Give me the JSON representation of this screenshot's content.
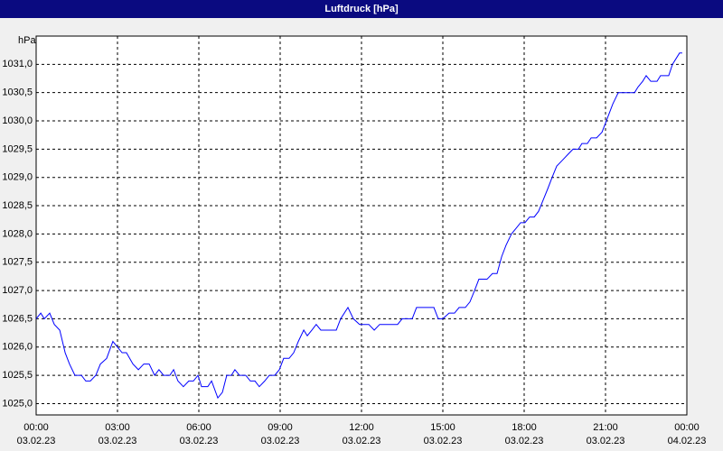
{
  "chart_data": {
    "type": "line",
    "title": "Luftdruck [hPa]",
    "y_unit": "hPa",
    "x": [
      0,
      0.17,
      0.3,
      0.5,
      0.67,
      0.87,
      1.07,
      1.23,
      1.43,
      1.67,
      1.83,
      2,
      2.2,
      2.37,
      2.6,
      2.83,
      3,
      3.17,
      3.33,
      3.57,
      3.77,
      3.97,
      4.17,
      4.37,
      4.53,
      4.7,
      4.93,
      5.07,
      5.23,
      5.43,
      5.63,
      5.8,
      5.97,
      6.1,
      6.33,
      6.47,
      6.7,
      6.87,
      7.03,
      7.2,
      7.33,
      7.5,
      7.73,
      7.9,
      8.07,
      8.23,
      8.43,
      8.6,
      8.8,
      8.97,
      9.13,
      9.33,
      9.5,
      9.67,
      9.87,
      10,
      10.17,
      10.33,
      10.5,
      10.7,
      11.07,
      11.23,
      11.5,
      11.7,
      11.93,
      12.27,
      12.47,
      12.67,
      13.33,
      13.5,
      13.87,
      14.03,
      14.67,
      14.83,
      15,
      15.23,
      15.43,
      15.6,
      15.83,
      16,
      16.17,
      16.33,
      16.63,
      16.83,
      17,
      17.17,
      17.33,
      17.53,
      17.7,
      17.87,
      18.03,
      18.2,
      18.37,
      18.53,
      18.7,
      18.87,
      19.03,
      19.2,
      19.4,
      19.6,
      19.8,
      20,
      20.13,
      20.33,
      20.47,
      20.67,
      20.87,
      21.03,
      21.27,
      21.47,
      21.67,
      22.07,
      22.2,
      22.37,
      22.5,
      22.67,
      22.9,
      23.03,
      23.33,
      23.47,
      23.6,
      23.73,
      23.83
    ],
    "values": [
      1026.5,
      1026.6,
      1026.5,
      1026.6,
      1026.4,
      1026.3,
      1025.9,
      1025.7,
      1025.5,
      1025.5,
      1025.4,
      1025.4,
      1025.5,
      1025.7,
      1025.8,
      1026.1,
      1026.0,
      1025.9,
      1025.9,
      1025.7,
      1025.6,
      1025.7,
      1025.7,
      1025.5,
      1025.6,
      1025.5,
      1025.5,
      1025.6,
      1025.4,
      1025.3,
      1025.4,
      1025.4,
      1025.5,
      1025.3,
      1025.3,
      1025.4,
      1025.1,
      1025.2,
      1025.5,
      1025.5,
      1025.6,
      1025.5,
      1025.5,
      1025.4,
      1025.4,
      1025.3,
      1025.4,
      1025.5,
      1025.5,
      1025.6,
      1025.8,
      1025.8,
      1025.9,
      1026.1,
      1026.3,
      1026.2,
      1026.3,
      1026.4,
      1026.3,
      1026.3,
      1026.3,
      1026.5,
      1026.7,
      1026.5,
      1026.4,
      1026.4,
      1026.3,
      1026.4,
      1026.4,
      1026.5,
      1026.5,
      1026.7,
      1026.7,
      1026.5,
      1026.5,
      1026.6,
      1026.6,
      1026.7,
      1026.7,
      1026.8,
      1027.0,
      1027.2,
      1027.2,
      1027.3,
      1027.3,
      1027.6,
      1027.8,
      1028.0,
      1028.1,
      1028.2,
      1028.2,
      1028.3,
      1028.3,
      1028.4,
      1028.6,
      1028.8,
      1029.0,
      1029.2,
      1029.3,
      1029.4,
      1029.5,
      1029.5,
      1029.6,
      1029.6,
      1029.7,
      1029.7,
      1029.8,
      1030.0,
      1030.3,
      1030.5,
      1030.5,
      1030.5,
      1030.6,
      1030.7,
      1030.8,
      1030.7,
      1030.7,
      1030.8,
      1030.8,
      1031.0,
      1031.1,
      1031.2,
      1031.2
    ],
    "color": "#0000ff",
    "xlim": [
      0,
      24
    ],
    "xticks": [
      {
        "value": 0,
        "label": "00:00",
        "date": "03.02.23"
      },
      {
        "value": 3,
        "label": "03:00",
        "date": "03.02.23"
      },
      {
        "value": 6,
        "label": "06:00",
        "date": "03.02.23"
      },
      {
        "value": 9,
        "label": "09:00",
        "date": "03.02.23"
      },
      {
        "value": 12,
        "label": "12:00",
        "date": "03.02.23"
      },
      {
        "value": 15,
        "label": "15:00",
        "date": "03.02.23"
      },
      {
        "value": 18,
        "label": "18:00",
        "date": "03.02.23"
      },
      {
        "value": 21,
        "label": "21:00",
        "date": "03.02.23"
      },
      {
        "value": 24,
        "label": "00:00",
        "date": "04.02.23"
      }
    ],
    "ylim": [
      1024.8,
      1031.5
    ],
    "yticks": [
      {
        "value": 1025,
        "label": "1025,0"
      },
      {
        "value": 1025.5,
        "label": "1025,5"
      },
      {
        "value": 1026,
        "label": "1026,0"
      },
      {
        "value": 1026.5,
        "label": "1026,5"
      },
      {
        "value": 1027,
        "label": "1027,0"
      },
      {
        "value": 1027.5,
        "label": "1027,5"
      },
      {
        "value": 1028,
        "label": "1028,0"
      },
      {
        "value": 1028.5,
        "label": "1028,5"
      },
      {
        "value": 1029,
        "label": "1029,0"
      },
      {
        "value": 1029.5,
        "label": "1029,5"
      },
      {
        "value": 1030,
        "label": "1030,0"
      },
      {
        "value": 1030.5,
        "label": "1030,5"
      },
      {
        "value": 1031,
        "label": "1031,0"
      }
    ],
    "grid": true
  }
}
